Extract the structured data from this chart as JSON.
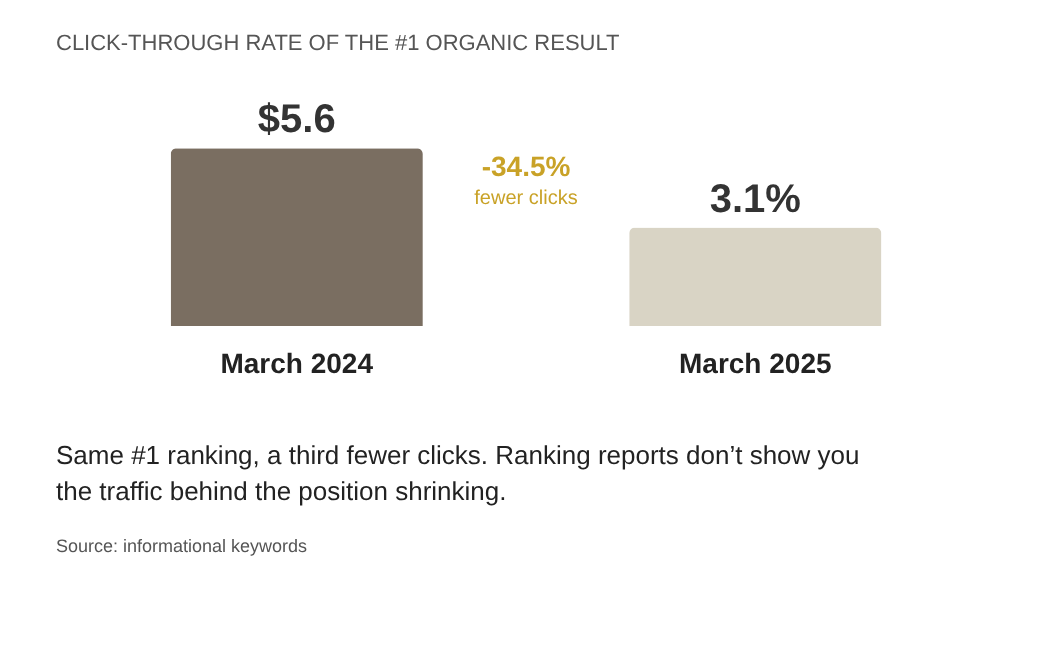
{
  "chart_data": {
    "type": "bar",
    "title": "CLICK-THROUGH RATE OF THE #1 ORGANIC RESULT",
    "categories": [
      "March 2024",
      "March 2025"
    ],
    "values": [
      5.6,
      3.1
    ],
    "value_labels": [
      "$5.6",
      "3.1%"
    ],
    "colors": [
      "#7a6e61",
      "#d9d4c5"
    ],
    "annotations": [
      "-34.5%",
      "fewer clicks",
      "Same #1 ranking, a third fewer clicks. Ranking reports don’t show you the traffic behind the position shrinking.",
      "Source: informational keywords"
    ]
  }
}
